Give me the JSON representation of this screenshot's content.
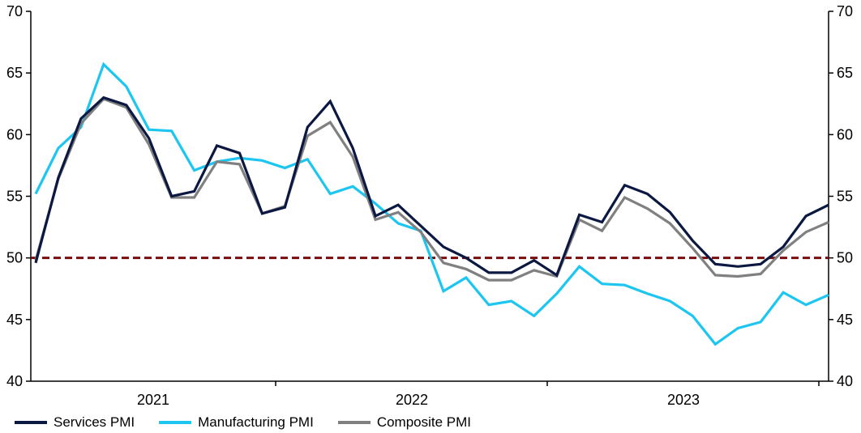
{
  "chart_data": {
    "type": "line",
    "title": "",
    "xlabel": "",
    "ylabel": "",
    "ylim": [
      40,
      70
    ],
    "yticks": [
      40,
      45,
      50,
      55,
      60,
      65,
      70
    ],
    "year_labels": [
      "2021",
      "2022",
      "2023"
    ],
    "reference_line": {
      "value": 50,
      "color": "#7b0c0c",
      "style": "dashed"
    },
    "series": [
      {
        "name": "Services PMI",
        "color": "#0b1842",
        "values": [
          49.6,
          56.5,
          61.3,
          63.0,
          62.4,
          59.7,
          55.0,
          55.4,
          59.1,
          58.5,
          53.6,
          54.1,
          60.6,
          62.7,
          58.9,
          53.4,
          54.3,
          52.6,
          50.9,
          50.0,
          48.8,
          48.8,
          49.8,
          48.6,
          53.5,
          52.9,
          55.9,
          55.2,
          53.7,
          51.4,
          49.5,
          49.3,
          49.5,
          50.9,
          53.4,
          54.3
        ]
      },
      {
        "name": "Manufacturing PMI",
        "color": "#1cc6f0",
        "values": [
          55.2,
          58.9,
          60.6,
          65.7,
          63.9,
          60.4,
          60.3,
          57.1,
          57.8,
          58.1,
          57.9,
          57.3,
          58.0,
          55.2,
          55.8,
          54.4,
          52.8,
          52.2,
          47.3,
          48.4,
          46.2,
          46.5,
          45.3,
          47.1,
          49.3,
          47.9,
          47.8,
          47.1,
          46.5,
          45.3,
          43.0,
          44.3,
          44.8,
          47.2,
          46.2,
          47.0
        ]
      },
      {
        "name": "Composite PMI",
        "color": "#808080",
        "values": [
          49.8,
          56.4,
          60.9,
          62.9,
          62.2,
          59.2,
          54.9,
          54.9,
          57.8,
          57.6,
          53.6,
          54.2,
          59.9,
          61.0,
          58.2,
          53.1,
          53.7,
          52.1,
          49.6,
          49.1,
          48.2,
          48.2,
          49.0,
          48.5,
          53.1,
          52.2,
          54.9,
          54.0,
          52.8,
          50.8,
          48.6,
          48.5,
          48.7,
          50.6,
          52.1,
          52.9
        ]
      }
    ]
  }
}
